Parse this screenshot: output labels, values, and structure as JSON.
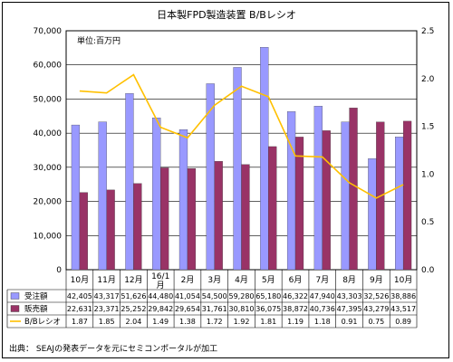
{
  "chart_data": {
    "type": "bar",
    "title": "日本製FPD製造装置 B/Bレシオ",
    "unit_label": "単位:百万円",
    "categories": [
      "10月",
      "11月",
      "12月",
      "16/1月",
      "2月",
      "3月",
      "4月",
      "5月",
      "6月",
      "7月",
      "8月",
      "9月",
      "10月"
    ],
    "series": [
      {
        "name": "受注額",
        "kind": "bar",
        "axis": "left",
        "color": "#9999ff",
        "values": [
          42405,
          43317,
          51626,
          44480,
          41054,
          54500,
          59280,
          65180,
          46322,
          47940,
          43303,
          32526,
          38886
        ],
        "labels": [
          "42,405",
          "43,317",
          "51,626",
          "44,480",
          "41,054",
          "54,500",
          "59,280",
          "65,180",
          "46,322",
          "47,940",
          "43,303",
          "32,526",
          "38,886"
        ]
      },
      {
        "name": "販売額",
        "kind": "bar",
        "axis": "left",
        "color": "#993366",
        "values": [
          22631,
          23371,
          25252,
          29842,
          29654,
          31761,
          30810,
          36075,
          38872,
          40736,
          47395,
          43279,
          43517
        ],
        "labels": [
          "22,631",
          "23,371",
          "25,252",
          "29,842",
          "29,654",
          "31,761",
          "30,810",
          "36,075",
          "38,872",
          "40,736",
          "47,395",
          "43,279",
          "43,517"
        ]
      },
      {
        "name": "B/Bレシオ",
        "kind": "line",
        "axis": "right",
        "color": "#ffc000",
        "values": [
          1.87,
          1.85,
          2.04,
          1.49,
          1.38,
          1.72,
          1.92,
          1.81,
          1.19,
          1.18,
          0.91,
          0.75,
          0.89
        ],
        "labels": [
          "1.87",
          "1.85",
          "2.04",
          "1.49",
          "1.38",
          "1.72",
          "1.92",
          "1.81",
          "1.19",
          "1.18",
          "0.91",
          "0.75",
          "0.89"
        ]
      }
    ],
    "ylim_left": [
      0,
      70000
    ],
    "yticks_left": [
      "0",
      "10,000",
      "20,000",
      "30,000",
      "40,000",
      "50,000",
      "60,000",
      "70,000"
    ],
    "ylim_right": [
      0,
      2.5
    ],
    "yticks_right": [
      "0.0",
      "0.5",
      "1.0",
      "1.5",
      "2.0",
      "2.5"
    ],
    "grid": true,
    "legend": "table-below",
    "source": "出典： SEAJの発表データを元にセミコンポータルが加工"
  }
}
